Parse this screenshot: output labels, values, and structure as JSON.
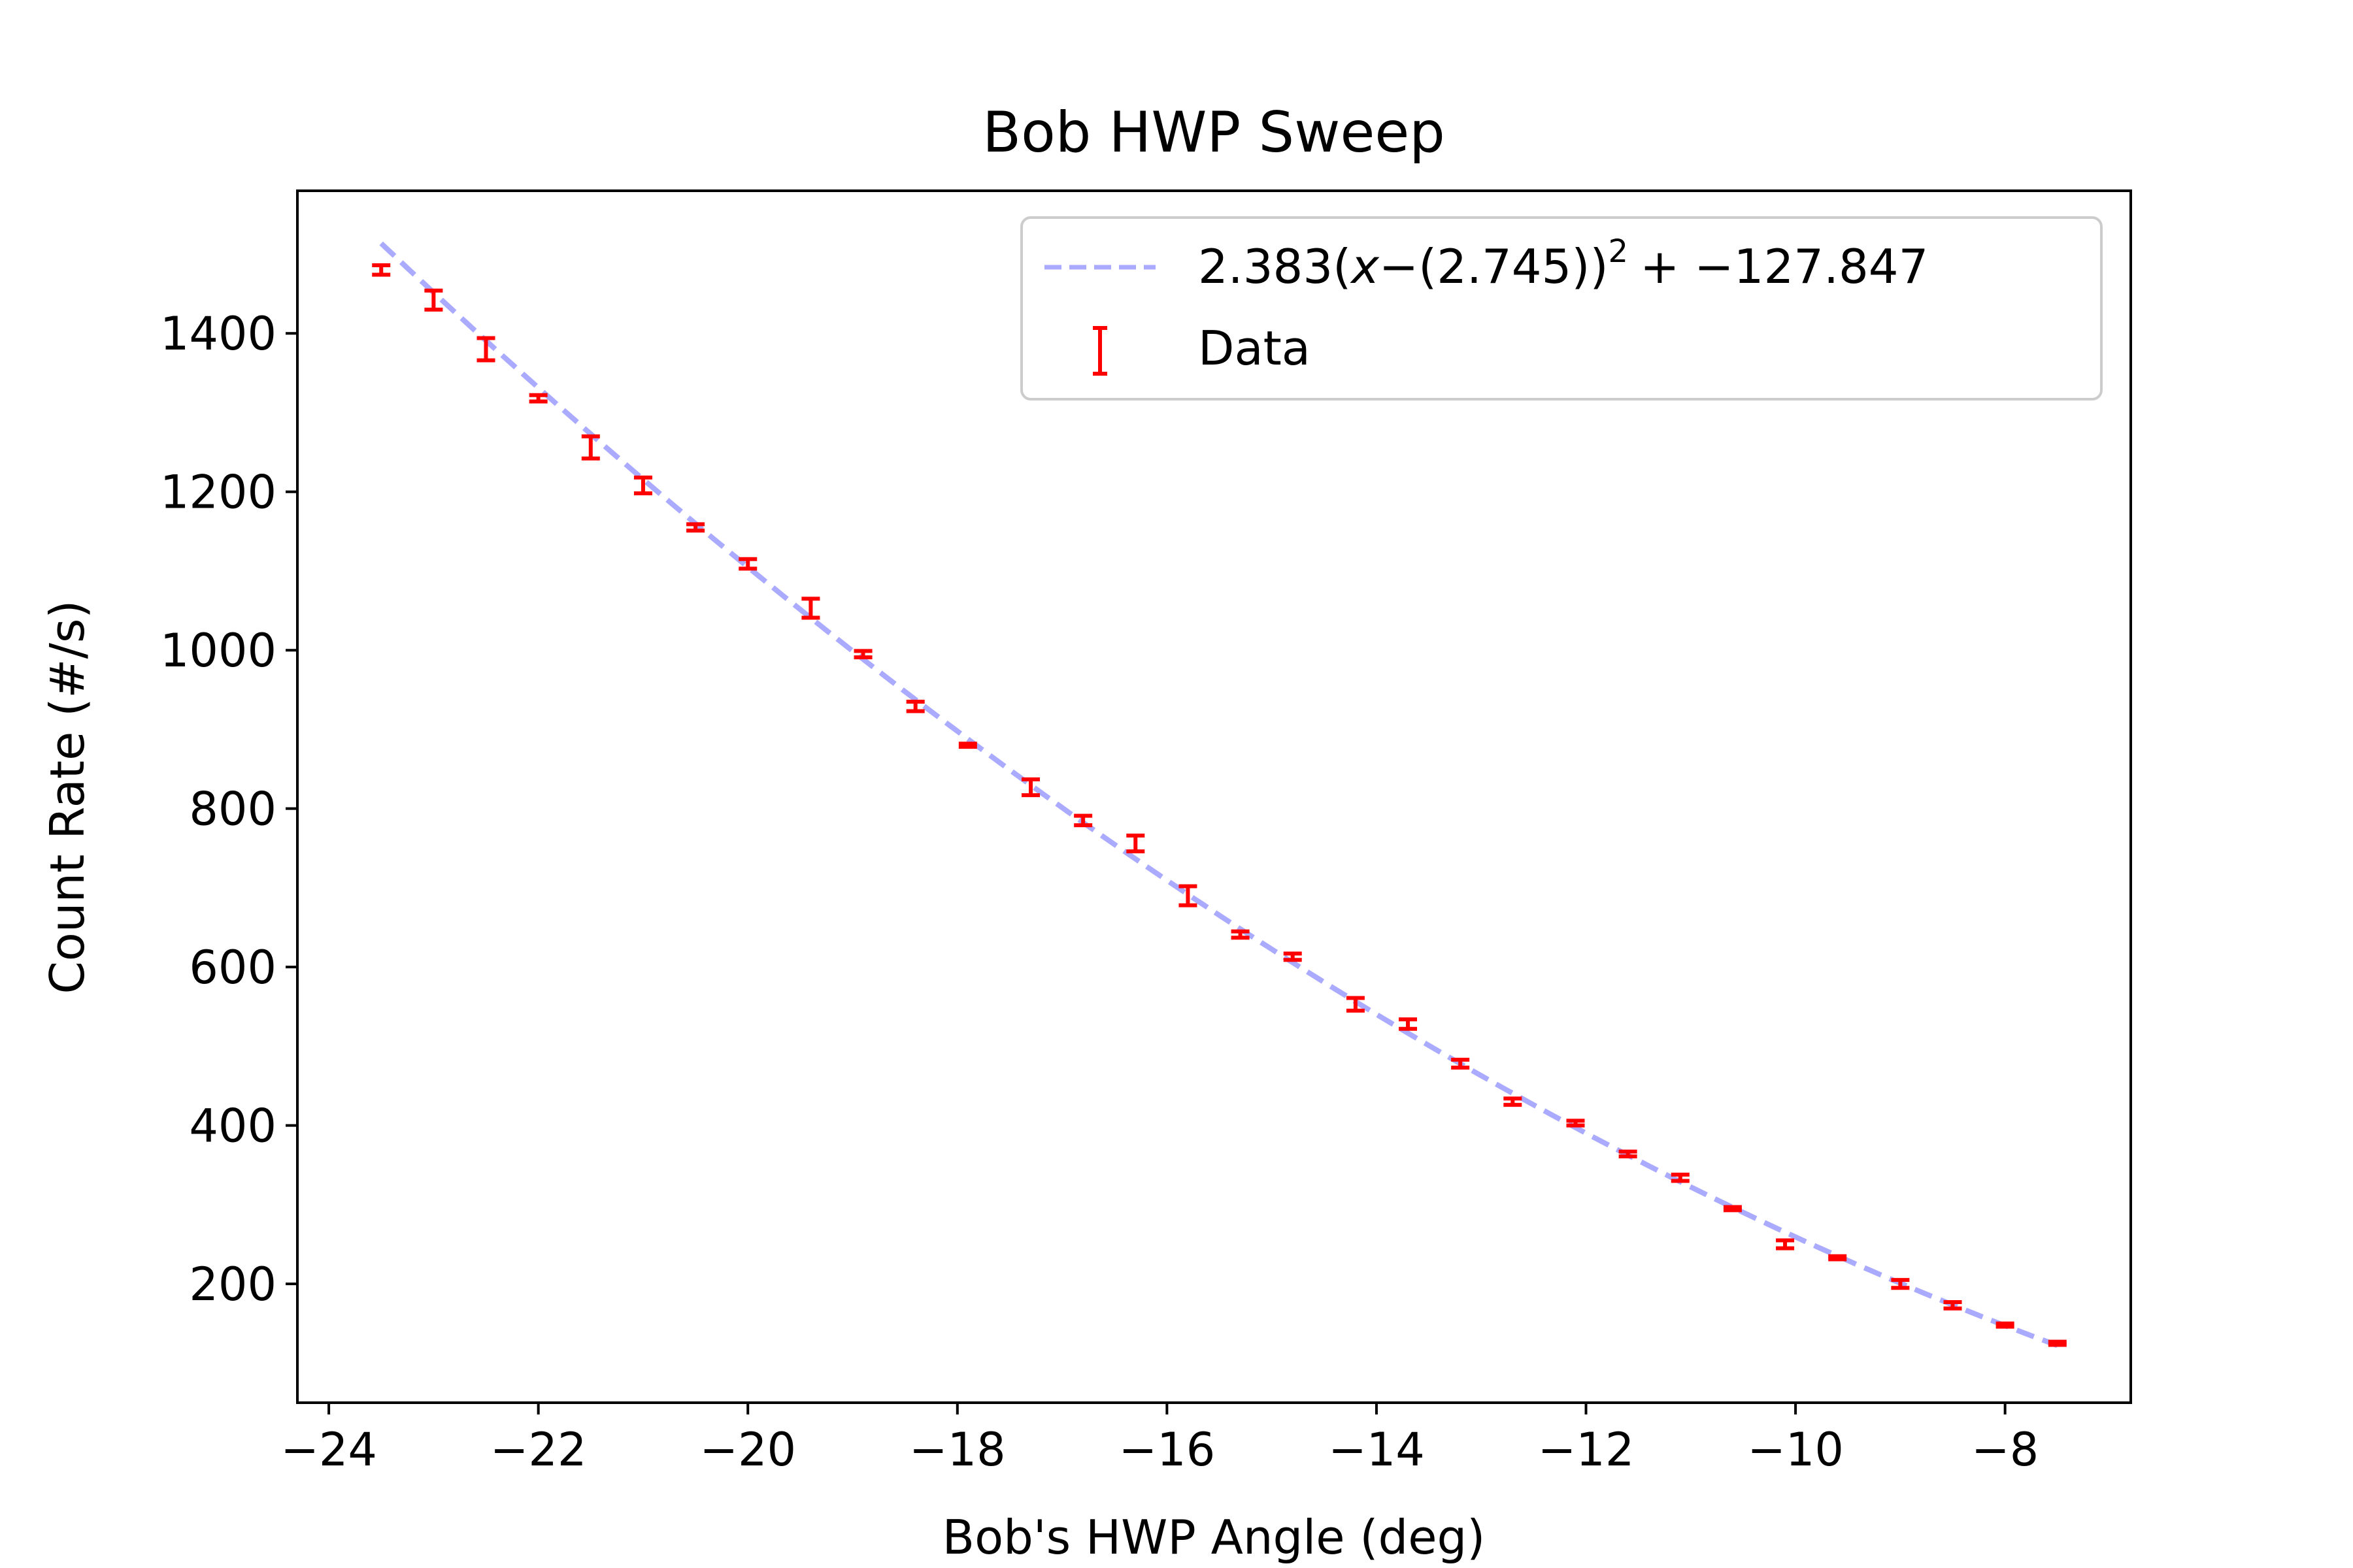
{
  "chart_data": {
    "type": "scatter",
    "title": "Bob HWP Sweep",
    "xlabel": "Bob's HWP Angle (deg)",
    "ylabel": "Count Rate (#/s)",
    "xlim": [
      -24.3,
      -6.8
    ],
    "ylim": [
      50,
      1580
    ],
    "x_ticks": [
      -24,
      -22,
      -20,
      -18,
      -16,
      -14,
      -12,
      -10,
      -8
    ],
    "x_tick_labels": [
      "−24",
      "−22",
      "−20",
      "−18",
      "−16",
      "−14",
      "−12",
      "−10",
      "−8"
    ],
    "y_ticks": [
      200,
      400,
      600,
      800,
      1000,
      1200,
      1400
    ],
    "y_tick_labels": [
      "200",
      "400",
      "600",
      "800",
      "1000",
      "1200",
      "1400"
    ],
    "grid": false,
    "legend": {
      "placement": "upper right",
      "entries": [
        {
          "key": "fit",
          "label_prefix": "2.383(",
          "label_var": "x",
          "label_mid": "−(2.745))",
          "label_sup": "2",
          "label_suffix": "+ −127.847"
        },
        {
          "key": "data",
          "label": "Data"
        }
      ]
    },
    "series": [
      {
        "name": "Data",
        "kind": "errorbar",
        "color": "#ff0000",
        "x": [
          -23.5,
          -23.0,
          -22.5,
          -22.0,
          -21.5,
          -21.0,
          -20.5,
          -20.0,
          -19.4,
          -18.9,
          -18.4,
          -17.9,
          -17.3,
          -16.8,
          -16.3,
          -15.8,
          -15.3,
          -14.8,
          -14.2,
          -13.7,
          -13.2,
          -12.7,
          -12.1,
          -11.6,
          -11.1,
          -10.6,
          -10.1,
          -9.6,
          -9.0,
          -8.5,
          -8.0,
          -7.5
        ],
        "y": [
          1480,
          1442,
          1380,
          1318,
          1256,
          1208,
          1155,
          1109,
          1053,
          995,
          929,
          880,
          827,
          785,
          756,
          690,
          641,
          613,
          553,
          528,
          478,
          430,
          403,
          364,
          334,
          295,
          250,
          233,
          200,
          173,
          148,
          125
        ],
        "yerr": [
          6,
          12,
          14,
          4,
          14,
          10,
          4,
          6,
          12,
          4,
          6,
          2,
          10,
          6,
          10,
          12,
          4,
          4,
          8,
          6,
          5,
          4,
          3,
          3,
          4,
          2,
          5,
          2,
          5,
          4,
          2,
          2
        ]
      },
      {
        "name": "fit",
        "kind": "line",
        "color": "#aaaaff",
        "dashed": true,
        "formula": {
          "a": 2.383,
          "h": 2.745,
          "k": -127.847
        },
        "x_range": [
          -23.5,
          -7.5
        ]
      }
    ]
  }
}
